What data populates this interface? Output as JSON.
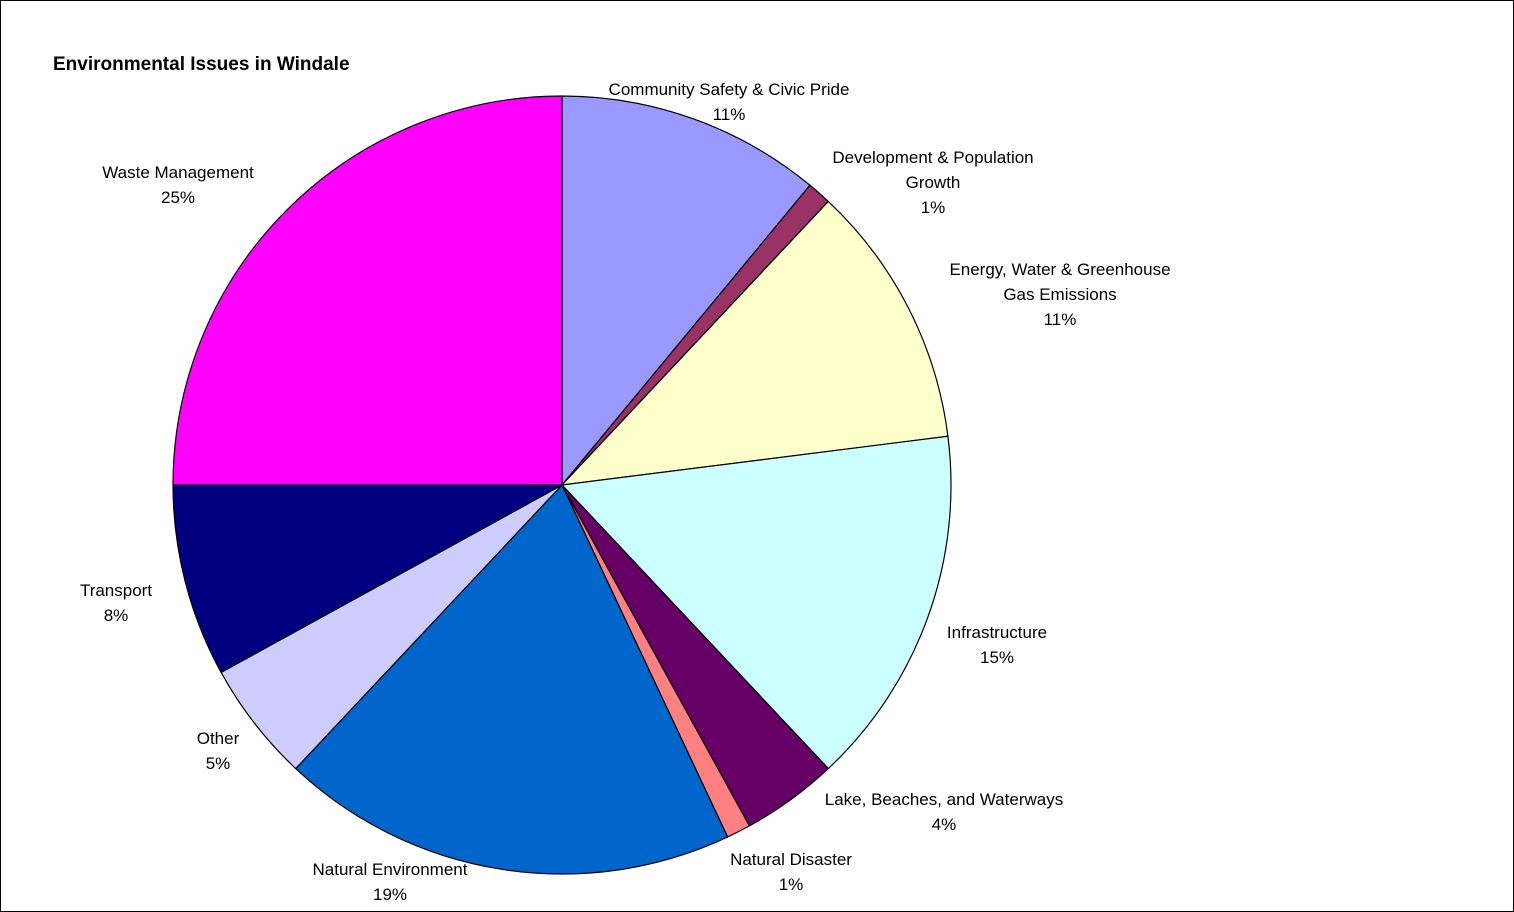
{
  "chart_data": {
    "type": "pie",
    "title": "Environmental Issues in Windale",
    "slices": [
      {
        "label": [
          "Community Safety & Civic Pride"
        ],
        "value": 11,
        "value_label": "11%",
        "color": "#9999FF"
      },
      {
        "label": [
          "Development & Population",
          "Growth"
        ],
        "value": 1,
        "value_label": "1%",
        "color": "#993366"
      },
      {
        "label": [
          "Energy, Water & Greenhouse",
          "Gas Emissions"
        ],
        "value": 11,
        "value_label": "11%",
        "color": "#FFFFCC"
      },
      {
        "label": [
          "Infrastructure"
        ],
        "value": 15,
        "value_label": "15%",
        "color": "#CCFFFF"
      },
      {
        "label": [
          "Lake, Beaches, and Waterways"
        ],
        "value": 4,
        "value_label": "4%",
        "color": "#660066"
      },
      {
        "label": [
          "Natural Disaster"
        ],
        "value": 1,
        "value_label": "1%",
        "color": "#FF8080"
      },
      {
        "label": [
          "Natural Environment"
        ],
        "value": 19,
        "value_label": "19%",
        "color": "#0066CC"
      },
      {
        "label": [
          "Other"
        ],
        "value": 5,
        "value_label": "5%",
        "color": "#CCCCFF"
      },
      {
        "label": [
          "Transport"
        ],
        "value": 8,
        "value_label": "8%",
        "color": "#000080"
      },
      {
        "label": [
          "Waste Management"
        ],
        "value": 25,
        "value_label": "25%",
        "color": "#FF00FF"
      }
    ],
    "legend": "none"
  }
}
